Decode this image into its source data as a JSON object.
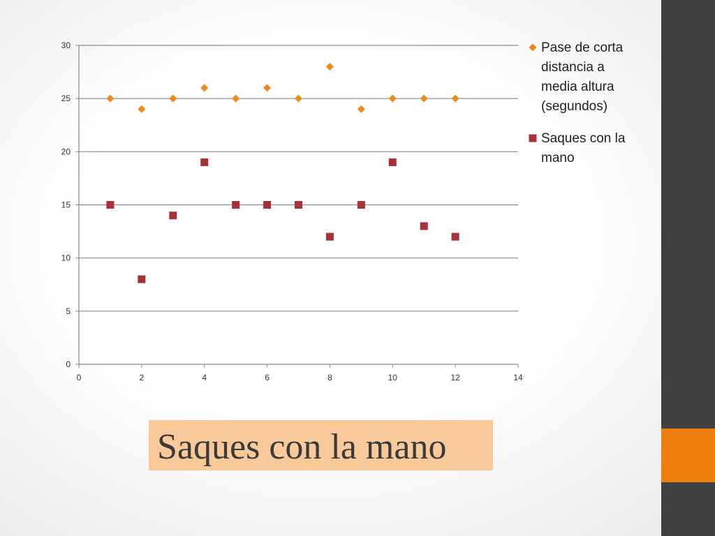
{
  "slide": {
    "title": "Saques con la mano",
    "colors": {
      "sidebar": "#404040",
      "sidebar_accent": "#ef7f0d",
      "title_background": "#f9c999"
    }
  },
  "chart_data": {
    "type": "scatter",
    "title": "",
    "xlabel": "",
    "ylabel": "",
    "xlim": [
      0,
      14
    ],
    "ylim": [
      0,
      30
    ],
    "x_ticks": [
      0,
      2,
      4,
      6,
      8,
      10,
      12,
      14
    ],
    "y_ticks": [
      0,
      5,
      10,
      15,
      20,
      25,
      30
    ],
    "grid": "horizontal",
    "legend_position": "right",
    "x": [
      1,
      2,
      3,
      4,
      5,
      6,
      7,
      8,
      9,
      10,
      11,
      12
    ],
    "series": [
      {
        "name": "Pase de corta distancia a media altura (segundos)",
        "legend_lines": [
          "Pase de corta",
          "distancia a",
          "media altura",
          "(segundos)"
        ],
        "marker": "diamond",
        "color": "#ef8a16",
        "values": [
          25,
          24,
          25,
          26,
          25,
          26,
          25,
          28,
          24,
          25,
          25,
          25
        ]
      },
      {
        "name": "Saques con la mano",
        "legend_lines": [
          "Saques con la",
          "mano"
        ],
        "marker": "square",
        "color": "#a8303a",
        "values": [
          15,
          8,
          14,
          19,
          15,
          15,
          15,
          12,
          15,
          19,
          13,
          12
        ]
      }
    ]
  }
}
